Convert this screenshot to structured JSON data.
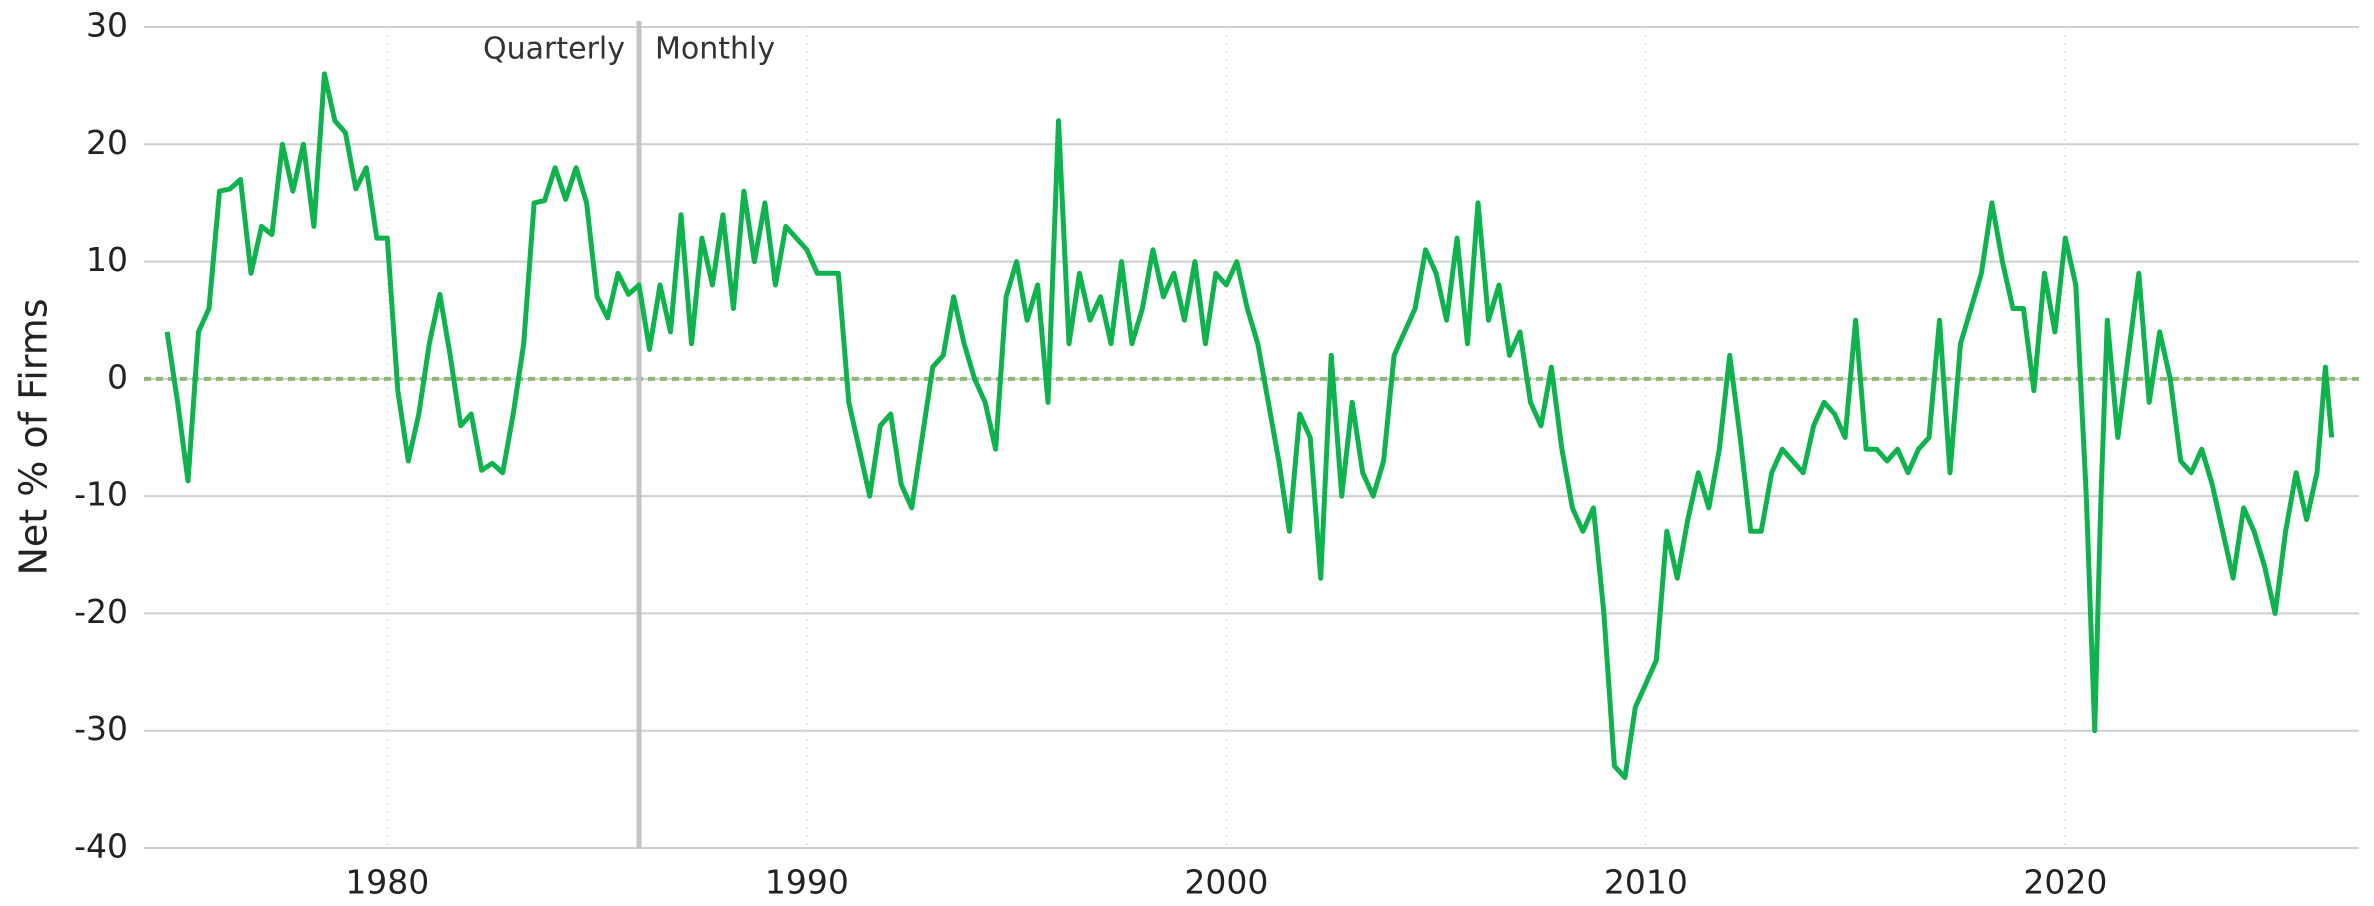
{
  "chart_data": {
    "type": "line",
    "y_label": "Net % of Firms",
    "annotations": [
      {
        "text": "Quarterly"
      },
      {
        "text": "Monthly"
      }
    ],
    "divider_x": 1986,
    "xlim": [
      1974.2,
      2027
    ],
    "ylim": [
      -40,
      30
    ],
    "xticks": [
      1980,
      1990,
      2000,
      2010,
      2020
    ],
    "yticks": [
      -40,
      -30,
      -20,
      -10,
      0,
      10,
      20,
      30
    ],
    "grid": true,
    "series": [
      {
        "name": "Net % of Firms",
        "color": "#0fb34d",
        "x": [
          1974.75,
          1975,
          1975.25,
          1975.5,
          1975.75,
          1976,
          1976.25,
          1976.5,
          1976.75,
          1977,
          1977.25,
          1977.5,
          1977.75,
          1978,
          1978.25,
          1978.5,
          1978.75,
          1979,
          1979.25,
          1979.5,
          1979.75,
          1980,
          1980.25,
          1980.5,
          1980.75,
          1981,
          1981.25,
          1981.5,
          1981.75,
          1982,
          1982.25,
          1982.5,
          1982.75,
          1983,
          1983.25,
          1983.5,
          1983.75,
          1984,
          1984.25,
          1984.5,
          1984.75,
          1985,
          1985.25,
          1985.5,
          1985.75,
          1986,
          1986.25,
          1986.5,
          1986.75,
          1987,
          1987.25,
          1987.5,
          1987.75,
          1988,
          1988.25,
          1988.5,
          1988.75,
          1989,
          1989.25,
          1989.5,
          1989.75,
          1990,
          1990.25,
          1990.5,
          1990.75,
          1991,
          1991.25,
          1991.5,
          1991.75,
          1992,
          1992.25,
          1992.5,
          1992.75,
          1993,
          1993.25,
          1993.5,
          1993.75,
          1994,
          1994.25,
          1994.5,
          1994.75,
          1995,
          1995.25,
          1995.5,
          1995.75,
          1996,
          1996.25,
          1996.5,
          1996.75,
          1997,
          1997.25,
          1997.5,
          1997.75,
          1998,
          1998.25,
          1998.5,
          1998.75,
          1999,
          1999.25,
          1999.5,
          1999.75,
          2000,
          2000.25,
          2000.5,
          2000.75,
          2001,
          2001.25,
          2001.5,
          2001.75,
          2002,
          2002.25,
          2002.5,
          2002.75,
          2003,
          2003.25,
          2003.5,
          2003.75,
          2004,
          2004.25,
          2004.5,
          2004.75,
          2005,
          2005.25,
          2005.5,
          2005.75,
          2006,
          2006.25,
          2006.5,
          2006.75,
          2007,
          2007.25,
          2007.5,
          2007.75,
          2008,
          2008.25,
          2008.5,
          2008.75,
          2009,
          2009.25,
          2009.5,
          2009.75,
          2010,
          2010.25,
          2010.5,
          2010.75,
          2011,
          2011.25,
          2011.5,
          2011.75,
          2012,
          2012.25,
          2012.5,
          2012.75,
          2013,
          2013.25,
          2013.5,
          2013.75,
          2014,
          2014.25,
          2014.5,
          2014.75,
          2015,
          2015.25,
          2015.5,
          2015.75,
          2016,
          2016.25,
          2016.5,
          2016.75,
          2017,
          2017.25,
          2017.5,
          2017.75,
          2018,
          2018.25,
          2018.5,
          2018.75,
          2019,
          2019.25,
          2019.5,
          2019.75,
          2020,
          2020.25,
          2020.5,
          2020.7,
          2020.85,
          2021,
          2021.25,
          2021.5,
          2021.75,
          2022,
          2022.25,
          2022.5,
          2022.75,
          2023,
          2023.25,
          2023.5,
          2023.75,
          2024,
          2024.25,
          2024.5,
          2024.75,
          2025,
          2025.25,
          2025.5,
          2025.75,
          2026,
          2026.2,
          2026.35
        ],
        "values": [
          4,
          -2,
          -8.7,
          4,
          6,
          16,
          16.2,
          17,
          9,
          13,
          12.3,
          20,
          16,
          20,
          13,
          26,
          22,
          21,
          16.2,
          18,
          12,
          12,
          -1,
          -7,
          -3,
          3,
          7.2,
          2,
          -4,
          -3,
          -7.8,
          -7.2,
          -8,
          -3,
          3,
          15,
          15.2,
          18,
          15.3,
          18,
          15,
          7,
          5.2,
          9,
          7.2,
          8,
          2.5,
          8,
          4,
          14,
          3,
          12,
          8,
          14,
          6,
          16,
          10,
          15,
          8,
          13,
          12,
          11,
          9,
          9,
          9,
          -2,
          -6,
          -10,
          -4,
          -3,
          -9,
          -11,
          -5,
          1,
          2,
          7,
          3,
          0,
          -2,
          -6,
          7,
          10,
          5,
          8,
          -2,
          22,
          3,
          9,
          5,
          7,
          3,
          10,
          3,
          6,
          11,
          7,
          9,
          5,
          10,
          3,
          9,
          8,
          10,
          6,
          3,
          -2,
          -7,
          -13,
          -3,
          -5,
          -17,
          2,
          -10,
          -2,
          -8,
          -10,
          -7,
          2,
          4,
          6,
          11,
          9,
          5,
          12,
          3,
          15,
          5,
          8,
          2,
          4,
          -2,
          -4,
          1,
          -6,
          -11,
          -13,
          -11,
          -20,
          -33,
          -34,
          -28,
          -26,
          -24,
          -13,
          -17,
          -12,
          -8,
          -11,
          -6,
          2,
          -5,
          -13,
          -13,
          -8,
          -6,
          -7,
          -8,
          -4,
          -2,
          -3,
          -5,
          5,
          -6,
          -6,
          -7,
          -6,
          -8,
          -6,
          -5,
          5,
          -8,
          3,
          6,
          9,
          15,
          10,
          6,
          6,
          -1,
          9,
          4,
          12,
          8,
          -10,
          -30,
          -10,
          5,
          -5,
          2,
          9,
          -2,
          4,
          0,
          -7,
          -8,
          -6,
          -9,
          -13,
          -17,
          -11,
          -13,
          -16,
          -20,
          -13,
          -8,
          -12,
          -8,
          1,
          -5
        ]
      }
    ]
  }
}
